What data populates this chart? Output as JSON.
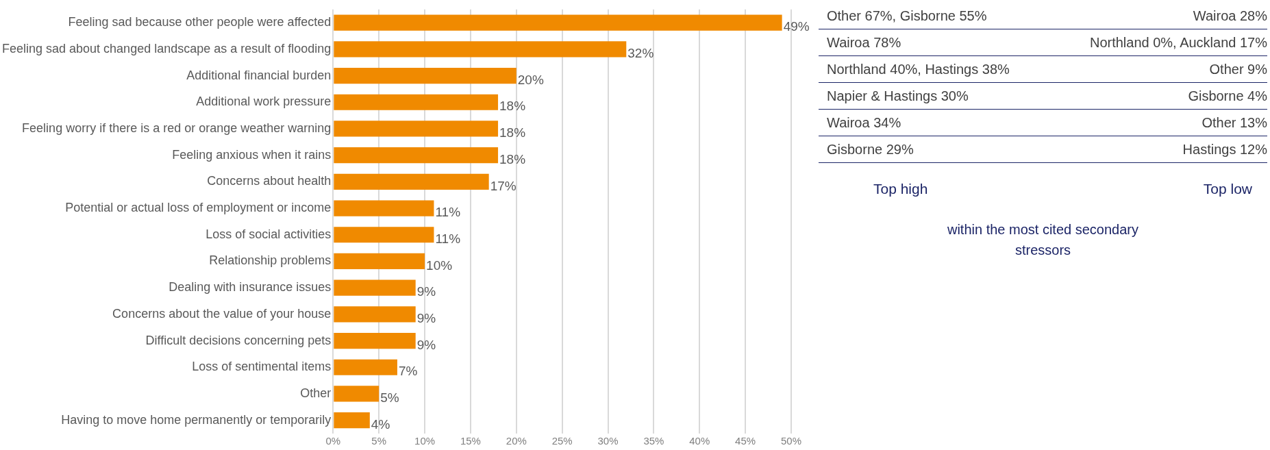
{
  "chart_data": {
    "type": "bar",
    "orientation": "horizontal",
    "categories": [
      "Feeling sad because other people were affected",
      "Feeling sad about changed landscape as a result of flooding",
      "Additional financial burden",
      "Additional work pressure",
      "Feeling worry if there is a red or orange weather warning",
      "Feeling anxious when it rains",
      "Concerns about health",
      "Potential or actual loss of employment or income",
      "Loss of social activities",
      "Relationship problems",
      "Dealing with insurance issues",
      "Concerns about the value of your house",
      "Difficult decisions concerning pets",
      "Loss of sentimental items",
      "Other",
      "Having to move home permanently or temporarily"
    ],
    "values": [
      49,
      32,
      20,
      18,
      18,
      18,
      17,
      11,
      11,
      10,
      9,
      9,
      9,
      7,
      5,
      4
    ],
    "value_labels": [
      "49%",
      "32%",
      "20%",
      "18%",
      "18%",
      "18%",
      "17%",
      "11%",
      "11%",
      "10%",
      "9%",
      "9%",
      "9%",
      "7%",
      "5%",
      "4%"
    ],
    "color": "#f08a00",
    "xlim": [
      0,
      50
    ],
    "xticks": [
      {
        "value": 0,
        "label": "0%"
      },
      {
        "value": 5,
        "label": "5%"
      },
      {
        "value": 10,
        "label": "10%"
      },
      {
        "value": 15,
        "label": "15%"
      },
      {
        "value": 20,
        "label": "20%"
      },
      {
        "value": 25,
        "label": "25%"
      },
      {
        "value": 30,
        "label": "30%"
      },
      {
        "value": 35,
        "label": "35%"
      },
      {
        "value": 40,
        "label": "40%"
      },
      {
        "value": 45,
        "label": "45%"
      },
      {
        "value": 50,
        "label": "50%"
      }
    ],
    "grid": "x",
    "annotations": [
      "Other 67%, Gisborne 55%",
      "Wairoa 28%",
      "Wairoa 78%",
      "Northland 0%, Auckland 17%",
      "Northland 40%, Hastings 38%",
      "Other 9%",
      "Napier & Hastings 30%",
      "Gisborne 4%",
      "Wairoa 34%",
      "Other 13%",
      "Gisborne 29%",
      "Hastings 12%",
      "Top high",
      "Top low",
      "within the most cited secondary stressors"
    ]
  }
}
